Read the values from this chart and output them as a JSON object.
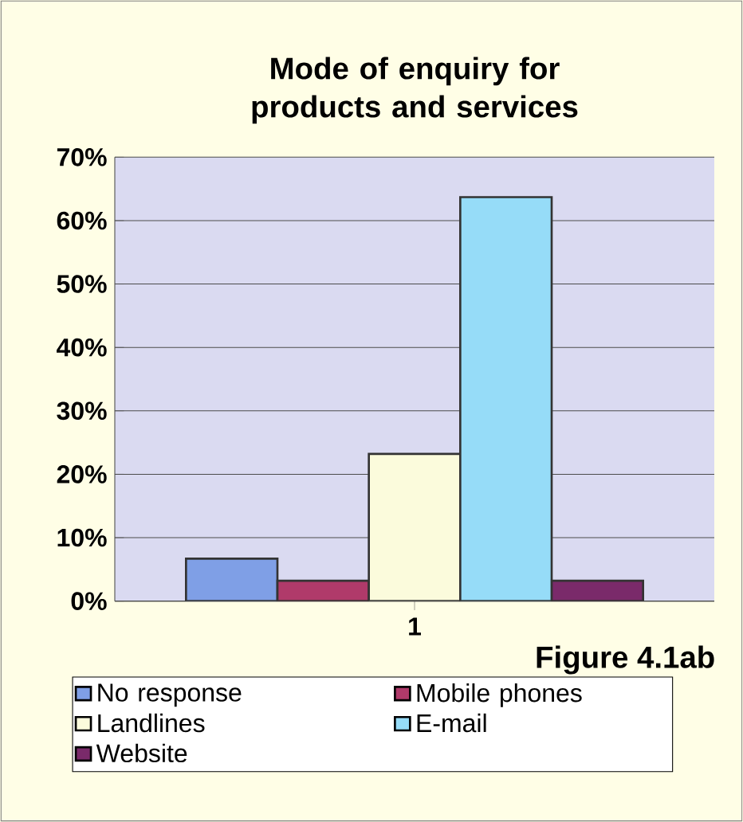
{
  "chart_data": {
    "type": "bar",
    "title": "Mode of enquiry for products and services",
    "categories": [
      "1"
    ],
    "series": [
      {
        "name": "No response",
        "color": "#7f9fe6",
        "values": [
          6.7
        ]
      },
      {
        "name": "Mobile phones",
        "color": "#b03a6a",
        "values": [
          3.2
        ]
      },
      {
        "name": "Landlines",
        "color": "#fbfbdc",
        "values": [
          23.2
        ]
      },
      {
        "name": "E-mail",
        "color": "#96dcf8",
        "values": [
          63.7
        ]
      },
      {
        "name": "Website",
        "color": "#7a2a6a",
        "values": [
          3.2
        ]
      }
    ],
    "ylim": [
      0,
      70
    ],
    "yticks": [
      {
        "value": 0,
        "label": "0%"
      },
      {
        "value": 10,
        "label": "10%"
      },
      {
        "value": 20,
        "label": "20%"
      },
      {
        "value": 30,
        "label": "30%"
      },
      {
        "value": 40,
        "label": "40%"
      },
      {
        "value": 50,
        "label": "50%"
      },
      {
        "value": 60,
        "label": "60%"
      },
      {
        "value": 70,
        "label": "70%"
      }
    ],
    "grid": "y",
    "legend": "bottom",
    "annotations": [
      "Figure 4.1ab"
    ]
  }
}
